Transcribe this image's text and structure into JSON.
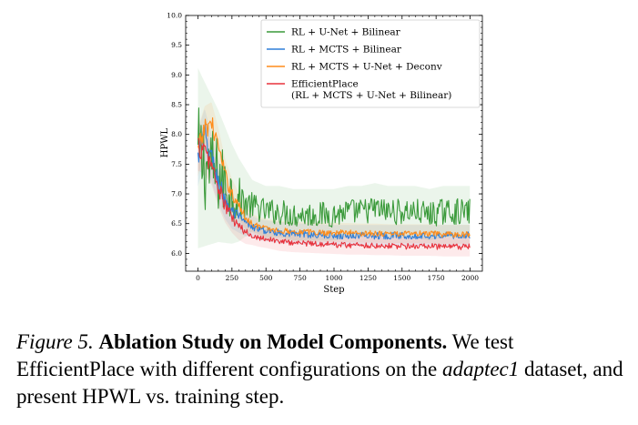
{
  "chart_data": {
    "type": "line",
    "xlabel": "Step",
    "ylabel": "HPWL",
    "xlim": [
      -90,
      2090
    ],
    "ylim": [
      5.7,
      10.0
    ],
    "xticks": [
      0,
      250,
      500,
      750,
      1000,
      1250,
      1500,
      1750,
      2000
    ],
    "yticks": [
      6.0,
      6.5,
      7.0,
      7.5,
      8.0,
      8.5,
      9.0,
      9.5,
      10.0
    ],
    "legend_position": "top-right",
    "grid": false,
    "series": [
      {
        "name": "RL + U-Net + Bilinear",
        "color": "#3a9a3a",
        "x": [
          0,
          50,
          100,
          150,
          200,
          250,
          300,
          350,
          400,
          450,
          500,
          600,
          700,
          800,
          900,
          1000,
          1100,
          1200,
          1300,
          1400,
          1500,
          1600,
          1700,
          1800,
          1900,
          2000
        ],
        "y": [
          7.6,
          7.5,
          7.4,
          7.3,
          7.15,
          7.0,
          6.9,
          6.85,
          6.8,
          6.75,
          6.7,
          6.7,
          6.65,
          6.65,
          6.65,
          6.65,
          6.7,
          6.7,
          6.75,
          6.7,
          6.7,
          6.7,
          6.65,
          6.7,
          6.7,
          6.7
        ],
        "noise": 0.22
      },
      {
        "name": "RL + MCTS + Bilinear",
        "color": "#2f7fd8",
        "x": [
          0,
          50,
          100,
          150,
          200,
          250,
          300,
          350,
          400,
          450,
          500,
          600,
          700,
          800,
          900,
          1000,
          1100,
          1200,
          1300,
          1400,
          1500,
          1600,
          1700,
          1800,
          1900,
          2000
        ],
        "y": [
          7.6,
          8.0,
          7.6,
          7.2,
          6.9,
          6.7,
          6.6,
          6.5,
          6.45,
          6.4,
          6.38,
          6.35,
          6.33,
          6.32,
          6.31,
          6.3,
          6.3,
          6.3,
          6.3,
          6.3,
          6.3,
          6.3,
          6.3,
          6.3,
          6.3,
          6.3
        ],
        "noise": 0.06
      },
      {
        "name": "RL + MCTS + U-Net + Deconv",
        "color": "#ff8c1a",
        "x": [
          0,
          50,
          100,
          150,
          200,
          250,
          300,
          350,
          400,
          450,
          500,
          600,
          700,
          800,
          900,
          1000,
          1100,
          1200,
          1300,
          1400,
          1500,
          1600,
          1700,
          1800,
          1900,
          2000
        ],
        "y": [
          7.7,
          8.1,
          8.2,
          7.8,
          7.3,
          7.0,
          6.8,
          6.6,
          6.5,
          6.45,
          6.42,
          6.38,
          6.37,
          6.36,
          6.35,
          6.35,
          6.35,
          6.34,
          6.34,
          6.33,
          6.33,
          6.33,
          6.33,
          6.32,
          6.32,
          6.32
        ],
        "noise": 0.05
      },
      {
        "name": "EfficientPlace",
        "name_line2": "(RL + MCTS + U-Net + Bilinear)",
        "color": "#e8323c",
        "x": [
          0,
          50,
          100,
          150,
          200,
          250,
          300,
          350,
          400,
          450,
          500,
          600,
          700,
          800,
          900,
          1000,
          1100,
          1200,
          1300,
          1400,
          1500,
          1600,
          1700,
          1800,
          1900,
          2000
        ],
        "y": [
          7.8,
          7.7,
          7.5,
          7.1,
          6.8,
          6.6,
          6.45,
          6.35,
          6.3,
          6.27,
          6.25,
          6.2,
          6.18,
          6.17,
          6.16,
          6.15,
          6.14,
          6.14,
          6.13,
          6.13,
          6.12,
          6.12,
          6.12,
          6.11,
          6.11,
          6.11
        ],
        "noise": 0.05
      }
    ]
  },
  "caption": {
    "label": "Figure 5.",
    "title": "Ablation Study on Model Components.",
    "text_before": "We test EfficientPlace with different configurations on the",
    "dataset": "adaptec1",
    "text_after": "dataset, and present HPWL vs. training step."
  }
}
